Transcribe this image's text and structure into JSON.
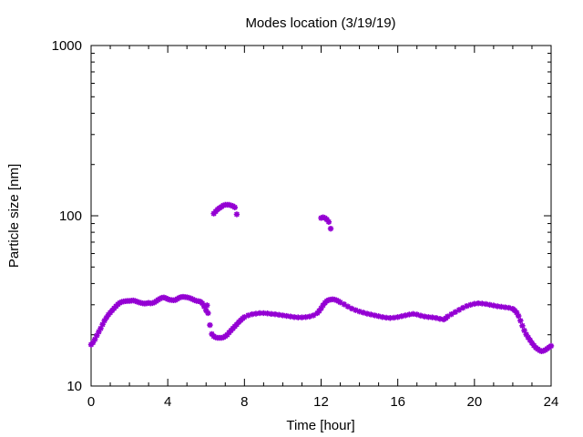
{
  "chart_data": {
    "type": "scatter",
    "title": "Modes location (3/19/19)",
    "xlabel": "Time [hour]",
    "ylabel": "Particle size [nm]",
    "xlim": [
      0,
      24
    ],
    "ylim": [
      10,
      1000
    ],
    "yscale": "log",
    "grid": false,
    "legend": "none",
    "marker_color": "#9400d3",
    "marker": "star",
    "x_ticks": [
      "0",
      "4",
      "8",
      "12",
      "16",
      "20",
      "24"
    ],
    "y_ticks": [
      "10",
      "100",
      "1000"
    ],
    "series": [
      {
        "points": [
          [
            0.0,
            17.5
          ],
          [
            0.1,
            18.0
          ],
          [
            0.2,
            18.8
          ],
          [
            0.3,
            19.8
          ],
          [
            0.4,
            20.8
          ],
          [
            0.5,
            21.8
          ],
          [
            0.6,
            23.0
          ],
          [
            0.7,
            24.2
          ],
          [
            0.8,
            25.2
          ],
          [
            0.9,
            26.2
          ],
          [
            1.0,
            27.0
          ],
          [
            1.1,
            27.8
          ],
          [
            1.2,
            28.6
          ],
          [
            1.3,
            29.4
          ],
          [
            1.4,
            30.2
          ],
          [
            1.5,
            30.8
          ],
          [
            1.6,
            31.2
          ],
          [
            1.7,
            31.4
          ],
          [
            1.8,
            31.5
          ],
          [
            1.9,
            31.6
          ],
          [
            2.0,
            31.6
          ],
          [
            2.1,
            31.7
          ],
          [
            2.2,
            31.8
          ],
          [
            2.3,
            31.6
          ],
          [
            2.4,
            31.3
          ],
          [
            2.5,
            31.0
          ],
          [
            2.6,
            30.8
          ],
          [
            2.7,
            30.6
          ],
          [
            2.8,
            30.5
          ],
          [
            2.9,
            30.6
          ],
          [
            3.0,
            30.8
          ],
          [
            3.1,
            30.6
          ],
          [
            3.2,
            30.7
          ],
          [
            3.3,
            31.0
          ],
          [
            3.4,
            31.5
          ],
          [
            3.5,
            32.1
          ],
          [
            3.6,
            32.6
          ],
          [
            3.7,
            33.0
          ],
          [
            3.8,
            33.1
          ],
          [
            3.9,
            32.8
          ],
          [
            4.0,
            32.4
          ],
          [
            4.1,
            32.1
          ],
          [
            4.2,
            32.0
          ],
          [
            4.3,
            31.9
          ],
          [
            4.4,
            32.0
          ],
          [
            4.5,
            32.5
          ],
          [
            4.6,
            33.0
          ],
          [
            4.7,
            33.3
          ],
          [
            4.8,
            33.4
          ],
          [
            4.9,
            33.3
          ],
          [
            5.0,
            33.2
          ],
          [
            5.1,
            33.0
          ],
          [
            5.2,
            32.7
          ],
          [
            5.3,
            32.3
          ],
          [
            5.4,
            31.9
          ],
          [
            5.5,
            31.6
          ],
          [
            5.6,
            31.5
          ],
          [
            5.7,
            31.3
          ],
          [
            5.8,
            30.6
          ],
          [
            5.9,
            29.3
          ],
          [
            6.0,
            27.8
          ],
          [
            6.05,
            29.8
          ],
          [
            6.1,
            26.8
          ],
          [
            6.2,
            22.8
          ],
          [
            6.3,
            20.2
          ],
          [
            6.4,
            19.6
          ],
          [
            6.5,
            19.3
          ],
          [
            6.6,
            19.2
          ],
          [
            6.7,
            19.2
          ],
          [
            6.8,
            19.2
          ],
          [
            6.9,
            19.3
          ],
          [
            7.0,
            19.6
          ],
          [
            7.1,
            20.0
          ],
          [
            7.2,
            20.6
          ],
          [
            7.3,
            21.2
          ],
          [
            7.4,
            21.8
          ],
          [
            7.5,
            22.4
          ],
          [
            7.6,
            23.0
          ],
          [
            7.7,
            23.7
          ],
          [
            7.8,
            24.3
          ],
          [
            7.9,
            24.9
          ],
          [
            8.0,
            25.4
          ],
          [
            8.2,
            26.0
          ],
          [
            8.4,
            26.4
          ],
          [
            8.6,
            26.6
          ],
          [
            8.8,
            26.8
          ],
          [
            9.0,
            26.8
          ],
          [
            9.2,
            26.7
          ],
          [
            9.4,
            26.5
          ],
          [
            9.6,
            26.4
          ],
          [
            9.8,
            26.2
          ],
          [
            10.0,
            26.0
          ],
          [
            10.2,
            25.8
          ],
          [
            10.4,
            25.6
          ],
          [
            10.6,
            25.4
          ],
          [
            10.8,
            25.3
          ],
          [
            11.0,
            25.3
          ],
          [
            11.2,
            25.4
          ],
          [
            11.4,
            25.6
          ],
          [
            11.6,
            26.0
          ],
          [
            11.8,
            26.8
          ],
          [
            11.9,
            27.6
          ],
          [
            12.0,
            28.6
          ],
          [
            12.1,
            29.8
          ],
          [
            12.2,
            30.8
          ],
          [
            12.3,
            31.6
          ],
          [
            12.4,
            32.0
          ],
          [
            12.5,
            32.2
          ],
          [
            12.6,
            32.3
          ],
          [
            12.7,
            32.2
          ],
          [
            12.8,
            31.9
          ],
          [
            12.9,
            31.5
          ],
          [
            13.0,
            31.0
          ],
          [
            13.2,
            30.2
          ],
          [
            13.4,
            29.3
          ],
          [
            13.6,
            28.5
          ],
          [
            13.8,
            27.9
          ],
          [
            14.0,
            27.4
          ],
          [
            14.2,
            27.0
          ],
          [
            14.4,
            26.6
          ],
          [
            14.6,
            26.3
          ],
          [
            14.8,
            26.0
          ],
          [
            15.0,
            25.7
          ],
          [
            15.2,
            25.4
          ],
          [
            15.4,
            25.2
          ],
          [
            15.6,
            25.1
          ],
          [
            15.8,
            25.2
          ],
          [
            16.0,
            25.4
          ],
          [
            16.2,
            25.7
          ],
          [
            16.4,
            26.0
          ],
          [
            16.6,
            26.3
          ],
          [
            16.8,
            26.5
          ],
          [
            17.0,
            26.3
          ],
          [
            17.2,
            25.9
          ],
          [
            17.4,
            25.6
          ],
          [
            17.6,
            25.4
          ],
          [
            17.8,
            25.3
          ],
          [
            18.0,
            25.1
          ],
          [
            18.2,
            24.8
          ],
          [
            18.4,
            24.6
          ],
          [
            18.5,
            25.0
          ],
          [
            18.6,
            25.6
          ],
          [
            18.8,
            26.4
          ],
          [
            19.0,
            27.2
          ],
          [
            19.2,
            28.0
          ],
          [
            19.4,
            28.8
          ],
          [
            19.6,
            29.5
          ],
          [
            19.8,
            30.0
          ],
          [
            20.0,
            30.4
          ],
          [
            20.2,
            30.6
          ],
          [
            20.4,
            30.5
          ],
          [
            20.6,
            30.3
          ],
          [
            20.8,
            30.0
          ],
          [
            21.0,
            29.7
          ],
          [
            21.2,
            29.4
          ],
          [
            21.4,
            29.2
          ],
          [
            21.6,
            29.0
          ],
          [
            21.8,
            28.8
          ],
          [
            22.0,
            28.4
          ],
          [
            22.1,
            27.8
          ],
          [
            22.2,
            27.0
          ],
          [
            22.3,
            25.8
          ],
          [
            22.4,
            24.2
          ],
          [
            22.5,
            22.6
          ],
          [
            22.6,
            21.2
          ],
          [
            22.7,
            20.1
          ],
          [
            22.8,
            19.3
          ],
          [
            22.9,
            18.6
          ],
          [
            23.0,
            17.9
          ],
          [
            23.1,
            17.3
          ],
          [
            23.2,
            16.8
          ],
          [
            23.3,
            16.5
          ],
          [
            23.4,
            16.2
          ],
          [
            23.5,
            16.0
          ],
          [
            23.6,
            16.1
          ],
          [
            23.7,
            16.3
          ],
          [
            23.8,
            16.6
          ],
          [
            23.9,
            16.9
          ],
          [
            24.0,
            17.2
          ],
          [
            6.4,
            103
          ],
          [
            6.5,
            106
          ],
          [
            6.6,
            109
          ],
          [
            6.7,
            111
          ],
          [
            6.8,
            113
          ],
          [
            6.9,
            115
          ],
          [
            7.0,
            116
          ],
          [
            7.1,
            116
          ],
          [
            7.2,
            116
          ],
          [
            7.3,
            115
          ],
          [
            7.4,
            114
          ],
          [
            7.5,
            112
          ],
          [
            7.6,
            102
          ],
          [
            12.0,
            97
          ],
          [
            12.1,
            98
          ],
          [
            12.2,
            97
          ],
          [
            12.3,
            95
          ],
          [
            12.4,
            92
          ],
          [
            12.5,
            84
          ]
        ]
      }
    ]
  }
}
